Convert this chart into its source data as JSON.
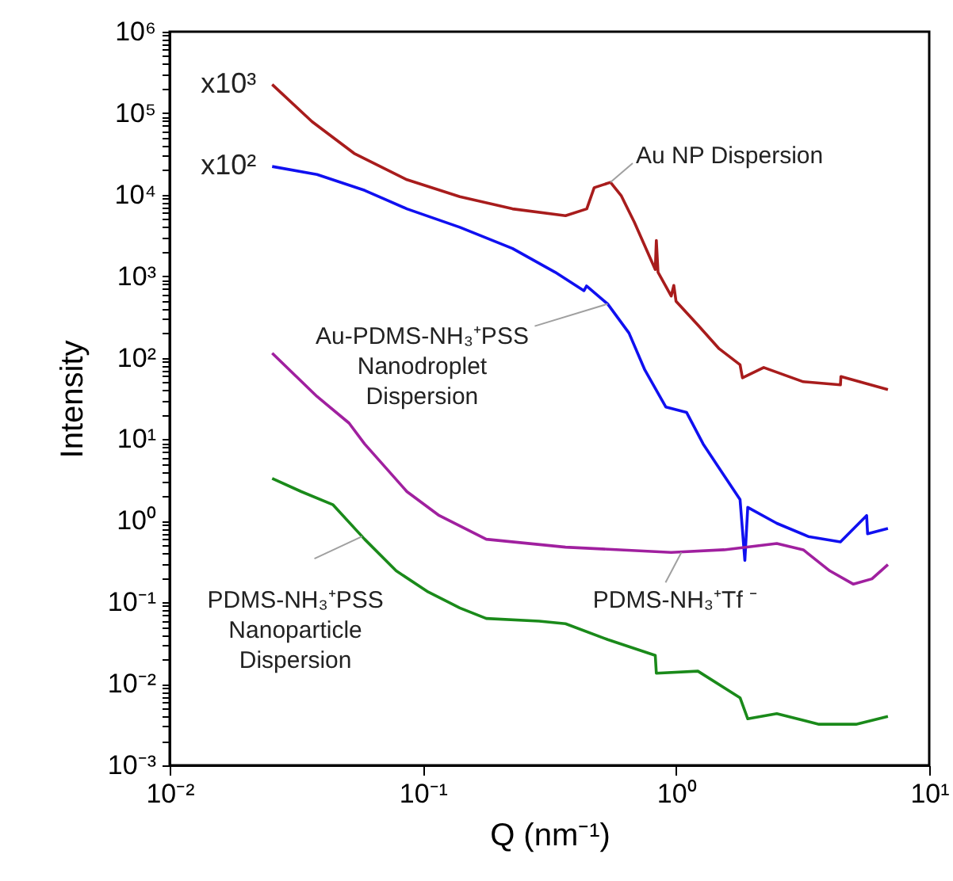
{
  "chart_data": {
    "type": "line",
    "xlabel": "Q (nm⁻¹)",
    "ylabel": "Intensity",
    "log": "xy",
    "grid": false,
    "line_style": "solid",
    "marker": "none",
    "xlim": [
      0.01,
      10
    ],
    "ylim": [
      0.001,
      1000000
    ],
    "xticks": [
      {
        "value": 0.01,
        "label": "10⁻²"
      },
      {
        "value": 0.1,
        "label": "10⁻¹"
      },
      {
        "value": 1,
        "label": "10⁰"
      },
      {
        "value": 10,
        "label": "10¹"
      }
    ],
    "yticks": [
      {
        "value": 0.001,
        "label": "10⁻³"
      },
      {
        "value": 0.002,
        "label": null
      },
      {
        "value": 0.003,
        "label": null
      },
      {
        "value": 0.004,
        "label": null
      },
      {
        "value": 0.005,
        "label": null
      },
      {
        "value": 0.006,
        "label": null
      },
      {
        "value": 0.007,
        "label": null
      },
      {
        "value": 0.008,
        "label": null
      },
      {
        "value": 0.009,
        "label": null
      },
      {
        "value": 0.01,
        "label": "10⁻²"
      },
      {
        "value": 0.02,
        "label": null
      },
      {
        "value": 0.03,
        "label": null
      },
      {
        "value": 0.04,
        "label": null
      },
      {
        "value": 0.05,
        "label": null
      },
      {
        "value": 0.06,
        "label": null
      },
      {
        "value": 0.07,
        "label": null
      },
      {
        "value": 0.08,
        "label": null
      },
      {
        "value": 0.09,
        "label": null
      },
      {
        "value": 0.1,
        "label": "10⁻¹"
      },
      {
        "value": 0.2,
        "label": null
      },
      {
        "value": 0.3,
        "label": null
      },
      {
        "value": 0.4,
        "label": null
      },
      {
        "value": 0.5,
        "label": null
      },
      {
        "value": 0.6,
        "label": null
      },
      {
        "value": 0.7,
        "label": null
      },
      {
        "value": 0.8,
        "label": null
      },
      {
        "value": 0.9,
        "label": null
      },
      {
        "value": 1,
        "label": "10⁰"
      },
      {
        "value": 2,
        "label": null
      },
      {
        "value": 3,
        "label": null
      },
      {
        "value": 4,
        "label": null
      },
      {
        "value": 5,
        "label": null
      },
      {
        "value": 6,
        "label": null
      },
      {
        "value": 7,
        "label": null
      },
      {
        "value": 8,
        "label": null
      },
      {
        "value": 9,
        "label": null
      },
      {
        "value": 10,
        "label": "10¹"
      },
      {
        "value": 20,
        "label": null
      },
      {
        "value": 30,
        "label": null
      },
      {
        "value": 40,
        "label": null
      },
      {
        "value": 50,
        "label": null
      },
      {
        "value": 60,
        "label": null
      },
      {
        "value": 70,
        "label": null
      },
      {
        "value": 80,
        "label": null
      },
      {
        "value": 90,
        "label": null
      },
      {
        "value": 100,
        "label": "10²"
      },
      {
        "value": 200,
        "label": null
      },
      {
        "value": 300,
        "label": null
      },
      {
        "value": 400,
        "label": null
      },
      {
        "value": 500,
        "label": null
      },
      {
        "value": 600,
        "label": null
      },
      {
        "value": 700,
        "label": null
      },
      {
        "value": 800,
        "label": null
      },
      {
        "value": 900,
        "label": null
      },
      {
        "value": 1000,
        "label": "10³"
      },
      {
        "value": 2000,
        "label": null
      },
      {
        "value": 3000,
        "label": null
      },
      {
        "value": 4000,
        "label": null
      },
      {
        "value": 5000,
        "label": null
      },
      {
        "value": 6000,
        "label": null
      },
      {
        "value": 7000,
        "label": null
      },
      {
        "value": 8000,
        "label": null
      },
      {
        "value": 9000,
        "label": null
      },
      {
        "value": 10000,
        "label": "10⁴"
      },
      {
        "value": 20000,
        "label": null
      },
      {
        "value": 30000,
        "label": null
      },
      {
        "value": 40000,
        "label": null
      },
      {
        "value": 50000,
        "label": null
      },
      {
        "value": 60000,
        "label": null
      },
      {
        "value": 70000,
        "label": null
      },
      {
        "value": 80000,
        "label": null
      },
      {
        "value": 90000,
        "label": null
      },
      {
        "value": 100000,
        "label": "10⁵"
      },
      {
        "value": 200000,
        "label": null
      },
      {
        "value": 300000,
        "label": null
      },
      {
        "value": 400000,
        "label": null
      },
      {
        "value": 500000,
        "label": null
      },
      {
        "value": 600000,
        "label": null
      },
      {
        "value": 700000,
        "label": null
      },
      {
        "value": 800000,
        "label": null
      },
      {
        "value": 900000,
        "label": null
      },
      {
        "value": 1000000,
        "label": "10⁶"
      }
    ],
    "series": [
      {
        "color": "#a81c1c",
        "x": [
          0.0254,
          0.0365,
          0.0535,
          0.0865,
          0.14,
          0.226,
          0.366,
          0.444,
          0.475,
          0.513,
          0.551,
          0.607,
          0.684,
          0.828,
          0.836,
          0.849,
          0.957,
          0.98,
          1.0,
          1.22,
          1.48,
          1.79,
          1.83,
          2.22,
          3.18,
          4.46,
          4.48,
          6.87
        ],
        "values": [
          225000,
          78900,
          32200,
          15300,
          9480,
          6710,
          5530,
          6710,
          12200,
          13200,
          14200,
          9770,
          4620,
          1210,
          2750,
          1120,
          571,
          771,
          493,
          252,
          129,
          82,
          56.6,
          76,
          50.8,
          46.5,
          58.9,
          40.6
        ]
      },
      {
        "color": "#1010f0",
        "x": [
          0.0254,
          0.0382,
          0.0589,
          0.0865,
          0.14,
          0.226,
          0.333,
          0.433,
          0.443,
          0.537,
          0.652,
          0.753,
          0.912,
          1.1,
          1.28,
          1.55,
          1.79,
          1.87,
          1.92,
          2.5,
          3.33,
          4.46,
          5.66,
          5.71,
          6.87
        ],
        "values": [
          22200,
          17700,
          11300,
          6710,
          3990,
          2190,
          1120,
          665,
          759,
          457,
          201,
          70.8,
          24.8,
          21.4,
          8.75,
          3.57,
          1.82,
          0.327,
          1.46,
          0.931,
          0.641,
          0.551,
          1.16,
          0.692,
          0.804
        ]
      },
      {
        "color": "#a0209f",
        "x": [
          0.0254,
          0.0382,
          0.0511,
          0.0589,
          0.0865,
          0.116,
          0.178,
          0.366,
          0.957,
          1.55,
          2.5,
          3.18,
          4.05,
          5.02,
          5.94,
          6.87
        ],
        "values": [
          114,
          33.5,
          15.8,
          8.75,
          2.28,
          1.16,
          0.594,
          0.475,
          0.409,
          0.441,
          0.527,
          0.441,
          0.243,
          0.167,
          0.194,
          0.29
        ]
      },
      {
        "color": "#1a8a1a",
        "x": [
          0.0254,
          0.0331,
          0.0442,
          0.0589,
          0.0785,
          0.105,
          0.14,
          0.178,
          0.288,
          0.366,
          0.537,
          0.828,
          0.836,
          1.22,
          1.79,
          1.92,
          2.5,
          3.67,
          5.14,
          6.87
        ],
        "values": [
          3.31,
          2.28,
          1.57,
          0.594,
          0.243,
          0.134,
          0.0853,
          0.0634,
          0.0587,
          0.0546,
          0.0349,
          0.0223,
          0.0135,
          0.0143,
          0.00675,
          0.00372,
          0.00431,
          0.00319,
          0.00319,
          0.00399
        ]
      }
    ],
    "annotations": [
      {
        "text": "x10³",
        "x": 0.0254,
        "y": 225000
      },
      {
        "text": "x10²",
        "x": 0.0254,
        "y": 22200
      },
      {
        "text": "Au NP Dispersion",
        "x": 0.551,
        "y": 14200
      },
      {
        "text": "Au-PDMS-NH₃⁺PSS\nNanodroplet\nDispersion",
        "x": 0.537,
        "y": 457
      },
      {
        "text": "PDMS-NH₃⁺Tf ⁻",
        "x": 1.05,
        "y": 0.409
      },
      {
        "text": "PDMS-NH₃⁺PSS\nNanoparticle\nDispersion",
        "x": 0.0575,
        "y": 0.641
      }
    ]
  }
}
